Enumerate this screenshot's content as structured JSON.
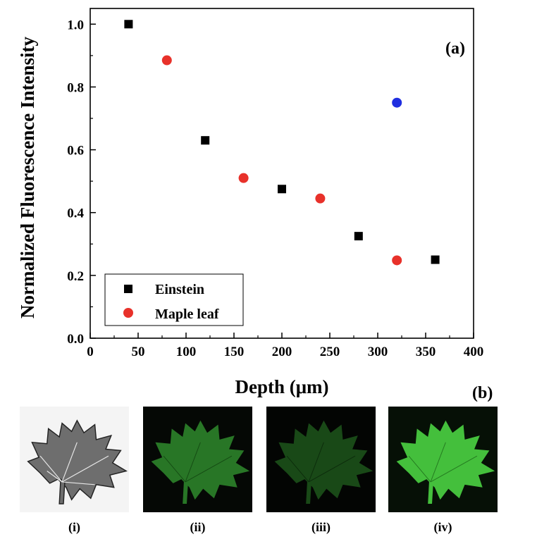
{
  "chart_data": {
    "type": "scatter",
    "ylabel": "Normalized Fluorescence Intensity",
    "xlabel": "Depth (μm)",
    "xlim": [
      0,
      400
    ],
    "ylim": [
      0,
      1.05
    ],
    "xticks": [
      0,
      50,
      100,
      150,
      200,
      250,
      300,
      350,
      400
    ],
    "yticks": [
      "0.0",
      "0.2",
      "0.4",
      "0.6",
      "0.8",
      "1.0"
    ],
    "grid": false,
    "legend": "bottom-left",
    "series": [
      {
        "name": "Einstein",
        "marker": "square",
        "color": "#000000",
        "x": [
          40,
          120,
          200,
          280,
          360
        ],
        "y": [
          1.0,
          0.63,
          0.475,
          0.325,
          0.25
        ]
      },
      {
        "name": "Maple leaf",
        "marker": "circle",
        "color": "#e8312a",
        "x": [
          80,
          160,
          240,
          320
        ],
        "y": [
          0.885,
          0.51,
          0.445,
          0.248
        ]
      },
      {
        "marker": "circle",
        "color": "#1f2ee0",
        "x": [
          320
        ],
        "y": [
          0.75
        ]
      }
    ],
    "panel_label": "(a)"
  },
  "figure": {
    "panel_b_label": "(b)",
    "images": [
      {
        "caption": "(i)",
        "kind": "grayscale-leaf"
      },
      {
        "caption": "(ii)",
        "kind": "fluorescent-leaf-medium"
      },
      {
        "caption": "(iii)",
        "kind": "fluorescent-leaf-dim"
      },
      {
        "caption": "(iv)",
        "kind": "fluorescent-leaf-bright"
      }
    ]
  }
}
